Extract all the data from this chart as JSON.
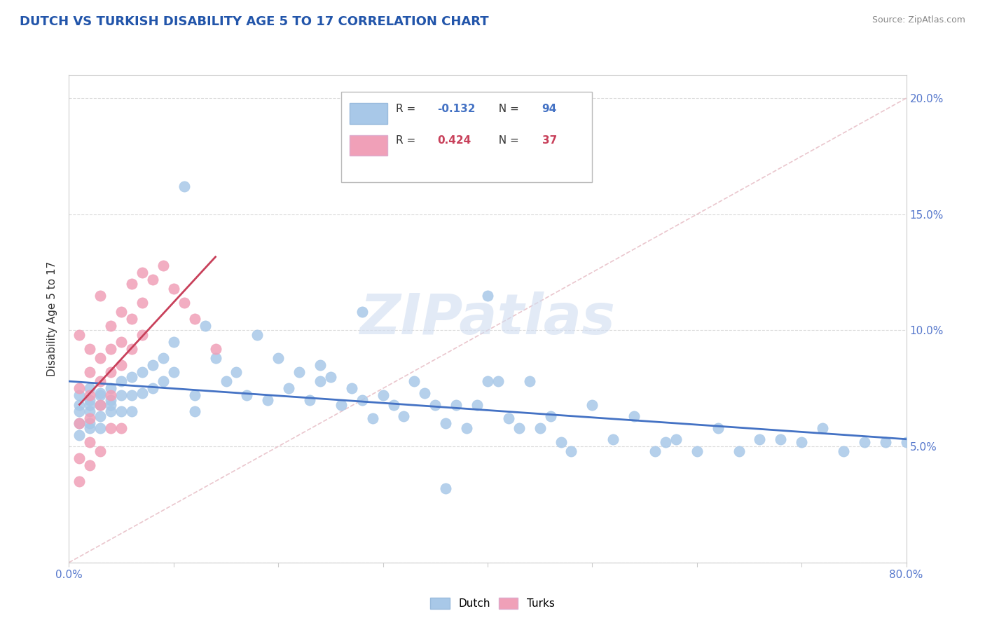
{
  "title": "DUTCH VS TURKISH DISABILITY AGE 5 TO 17 CORRELATION CHART",
  "source": "Source: ZipAtlas.com",
  "ylabel": "Disability Age 5 to 17",
  "legend_dutch": "Dutch",
  "legend_turks": "Turks",
  "R_dutch": -0.132,
  "N_dutch": 94,
  "R_turks": 0.424,
  "N_turks": 37,
  "dutch_color": "#a8c8e8",
  "turks_color": "#f0a0b8",
  "dutch_line_color": "#4472c4",
  "turks_line_color": "#c8405a",
  "title_color": "#2255aa",
  "axis_label_color": "#5577cc",
  "ylabel_color": "#333333",
  "watermark_color": "#d0ddf0",
  "xlim": [
    0.0,
    0.8
  ],
  "ylim": [
    0.0,
    0.21
  ],
  "dutch_scatter_x": [
    0.01,
    0.01,
    0.01,
    0.01,
    0.01,
    0.02,
    0.02,
    0.02,
    0.02,
    0.02,
    0.02,
    0.03,
    0.03,
    0.03,
    0.03,
    0.03,
    0.04,
    0.04,
    0.04,
    0.04,
    0.05,
    0.05,
    0.05,
    0.06,
    0.06,
    0.06,
    0.07,
    0.07,
    0.08,
    0.08,
    0.09,
    0.09,
    0.1,
    0.1,
    0.11,
    0.12,
    0.13,
    0.14,
    0.15,
    0.16,
    0.17,
    0.18,
    0.19,
    0.2,
    0.21,
    0.22,
    0.23,
    0.24,
    0.25,
    0.26,
    0.27,
    0.28,
    0.29,
    0.3,
    0.31,
    0.32,
    0.33,
    0.34,
    0.35,
    0.36,
    0.37,
    0.38,
    0.39,
    0.4,
    0.41,
    0.42,
    0.43,
    0.44,
    0.45,
    0.46,
    0.48,
    0.5,
    0.52,
    0.54,
    0.56,
    0.58,
    0.6,
    0.62,
    0.64,
    0.66,
    0.68,
    0.7,
    0.72,
    0.74,
    0.76,
    0.78,
    0.8,
    0.28,
    0.12,
    0.4,
    0.47,
    0.57,
    0.36,
    0.24
  ],
  "dutch_scatter_y": [
    0.068,
    0.065,
    0.06,
    0.072,
    0.055,
    0.07,
    0.065,
    0.06,
    0.068,
    0.058,
    0.075,
    0.072,
    0.068,
    0.063,
    0.058,
    0.073,
    0.075,
    0.07,
    0.065,
    0.068,
    0.078,
    0.072,
    0.065,
    0.08,
    0.072,
    0.065,
    0.082,
    0.073,
    0.085,
    0.075,
    0.088,
    0.078,
    0.095,
    0.082,
    0.162,
    0.072,
    0.102,
    0.088,
    0.078,
    0.082,
    0.072,
    0.098,
    0.07,
    0.088,
    0.075,
    0.082,
    0.07,
    0.085,
    0.08,
    0.068,
    0.075,
    0.07,
    0.062,
    0.072,
    0.068,
    0.063,
    0.078,
    0.073,
    0.068,
    0.06,
    0.068,
    0.058,
    0.068,
    0.078,
    0.078,
    0.062,
    0.058,
    0.078,
    0.058,
    0.063,
    0.048,
    0.068,
    0.053,
    0.063,
    0.048,
    0.053,
    0.048,
    0.058,
    0.048,
    0.053,
    0.053,
    0.052,
    0.058,
    0.048,
    0.052,
    0.052,
    0.052,
    0.108,
    0.065,
    0.115,
    0.052,
    0.052,
    0.032,
    0.078
  ],
  "turks_scatter_x": [
    0.01,
    0.01,
    0.01,
    0.01,
    0.01,
    0.02,
    0.02,
    0.02,
    0.02,
    0.02,
    0.02,
    0.03,
    0.03,
    0.03,
    0.03,
    0.03,
    0.04,
    0.04,
    0.04,
    0.04,
    0.04,
    0.05,
    0.05,
    0.05,
    0.05,
    0.06,
    0.06,
    0.06,
    0.07,
    0.07,
    0.07,
    0.08,
    0.09,
    0.1,
    0.11,
    0.12,
    0.14
  ],
  "turks_scatter_y": [
    0.098,
    0.06,
    0.045,
    0.075,
    0.035,
    0.092,
    0.082,
    0.072,
    0.062,
    0.042,
    0.052,
    0.088,
    0.078,
    0.068,
    0.048,
    0.115,
    0.102,
    0.092,
    0.082,
    0.072,
    0.058,
    0.108,
    0.095,
    0.085,
    0.058,
    0.12,
    0.105,
    0.092,
    0.125,
    0.112,
    0.098,
    0.122,
    0.128,
    0.118,
    0.112,
    0.105,
    0.092
  ],
  "diag_line_color": "#e8c0c8",
  "diag_line_style": "--"
}
